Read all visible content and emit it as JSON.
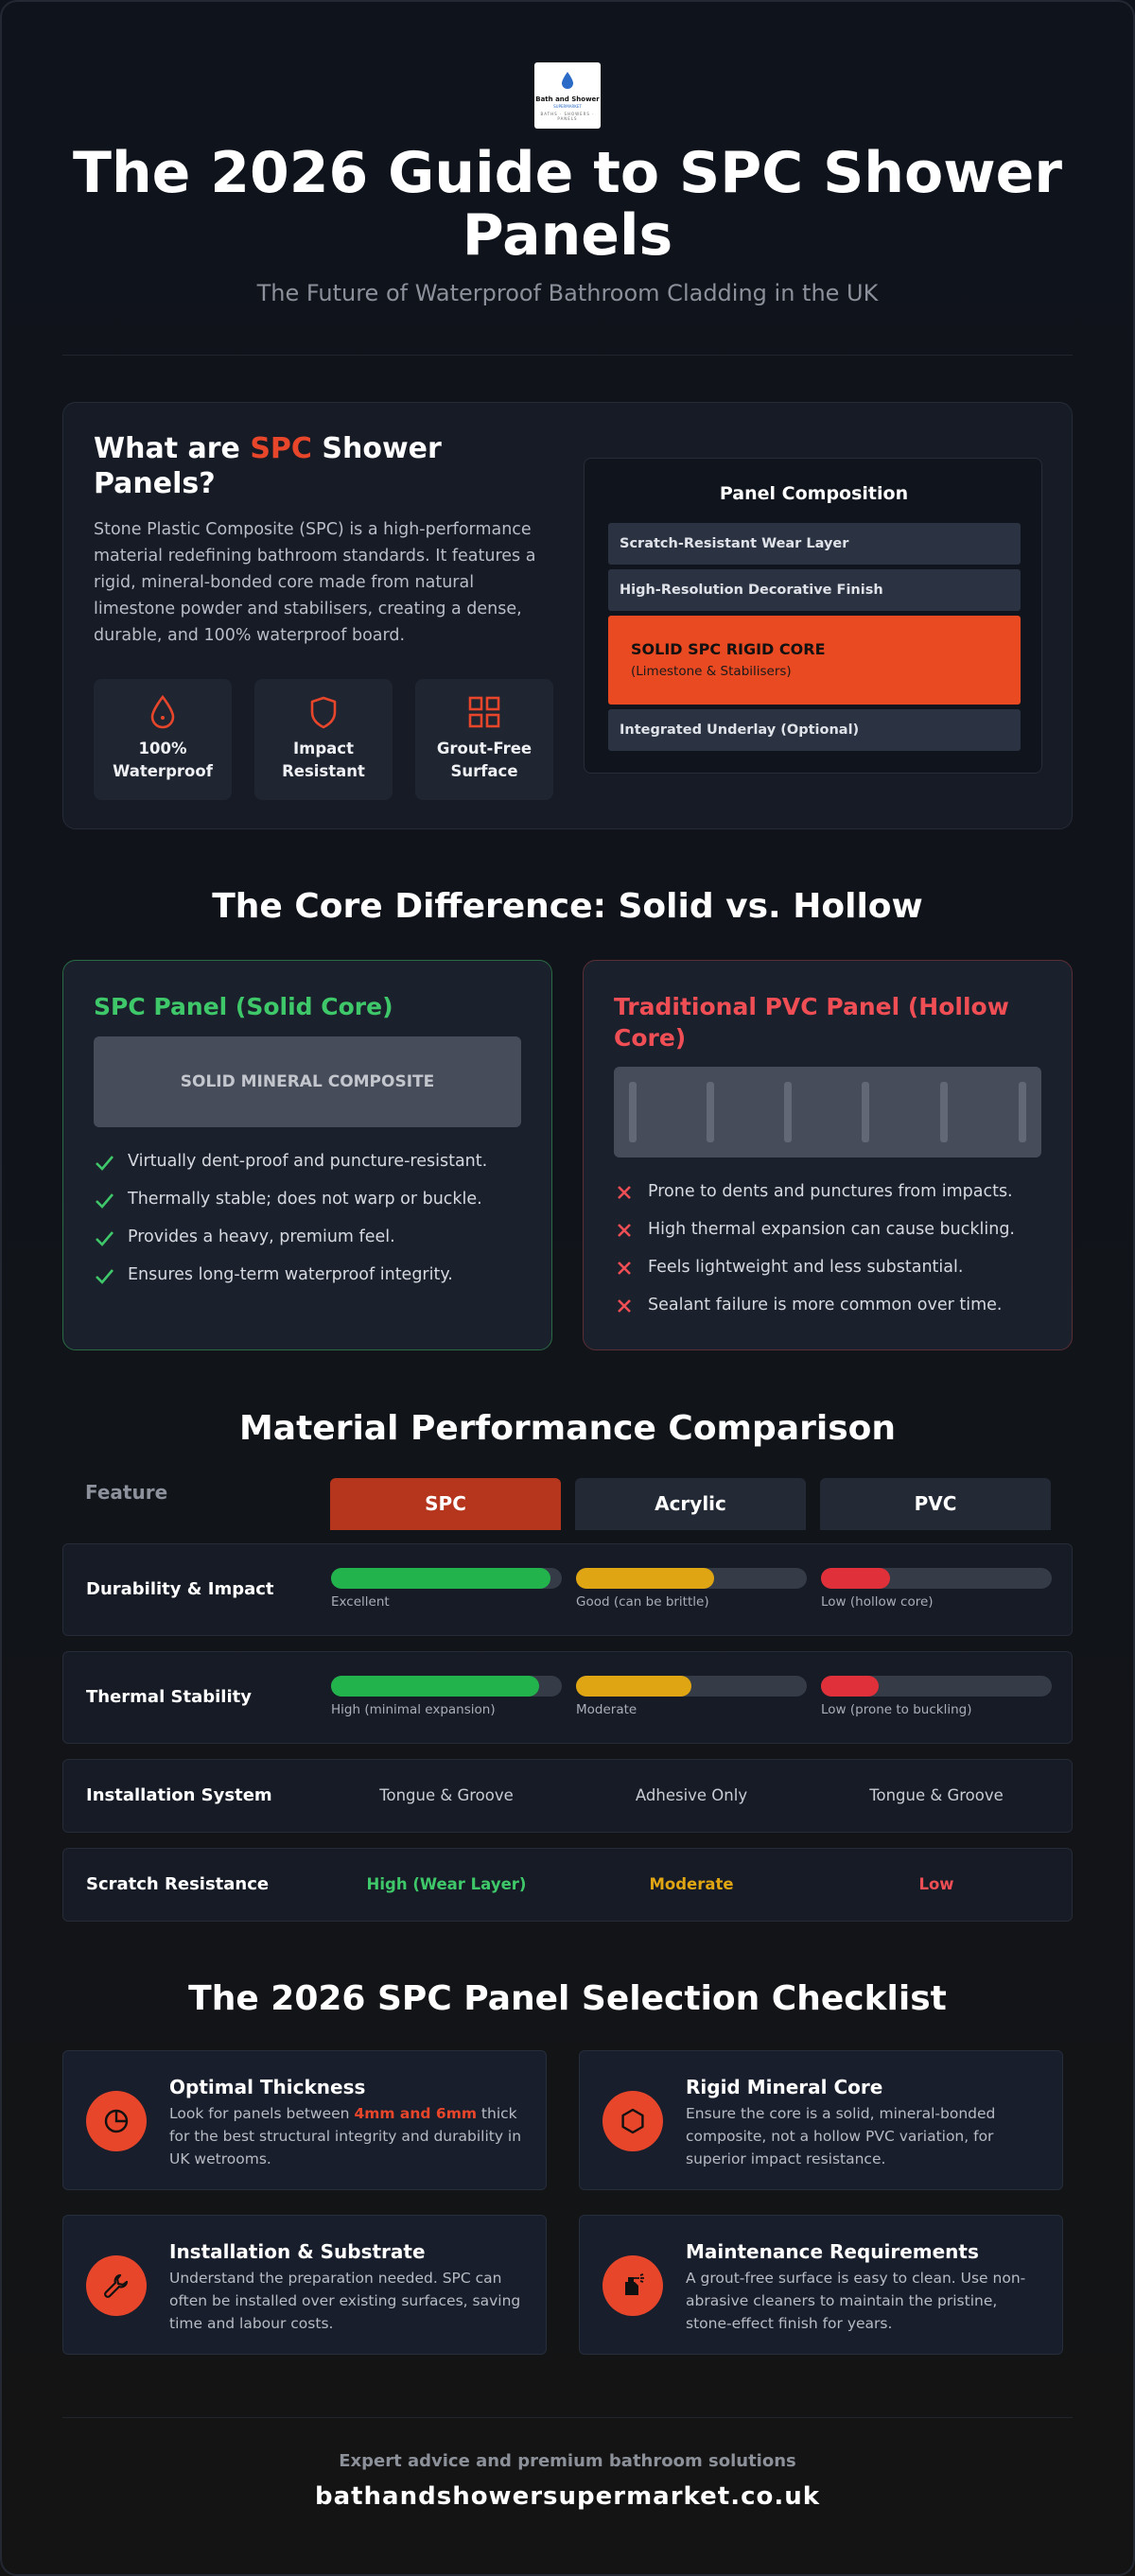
{
  "logo": {
    "brand": "Bath and Shower",
    "tagline": "SUPERMARKET",
    "nav": "BATHS · SHOWERS · PANELS"
  },
  "header": {
    "title": "The 2026 Guide to SPC Shower Panels",
    "subtitle": "The Future of Waterproof Bathroom Cladding in the UK"
  },
  "what": {
    "title_pre": "What are ",
    "title_accent": "SPC",
    "title_post": " Shower Panels?",
    "description": "Stone Plastic Composite (SPC) is a high-performance material redefining bathroom standards. It features a rigid, mineral-bonded core made from natural limestone powder and stabilisers, creating a dense, durable, and 100% waterproof board.",
    "features": [
      {
        "label": "100% Waterproof",
        "icon": "water-drop-icon"
      },
      {
        "label": "Impact Resistant",
        "icon": "shield-icon"
      },
      {
        "label": "Grout-Free Surface",
        "icon": "grid-icon"
      }
    ]
  },
  "composition": {
    "title": "Panel Composition",
    "layers": [
      {
        "label": "Scratch-Resistant Wear Layer"
      },
      {
        "label": "High-Resolution Decorative Finish"
      },
      {
        "label": "SOLID SPC RIGID CORE",
        "sub": "(Limestone & Stabilisers)"
      },
      {
        "label": "Integrated Underlay (Optional)"
      }
    ]
  },
  "core": {
    "heading": "The Core Difference: Solid vs. Hollow",
    "spc": {
      "title": "SPC Panel (Solid Core)",
      "block_label": "SOLID MINERAL COMPOSITE",
      "bullets": [
        "Virtually dent-proof and puncture-resistant.",
        "Thermally stable; does not warp or buckle.",
        "Provides a heavy, premium feel.",
        "Ensures long-term waterproof integrity."
      ]
    },
    "pvc": {
      "title": "Traditional PVC Panel (Hollow Core)",
      "bullets": [
        "Prone to dents and punctures from impacts.",
        "High thermal expansion can cause buckling.",
        "Feels lightweight and less substantial.",
        "Sealant failure is more common over time."
      ]
    }
  },
  "comparison": {
    "heading": "Material Performance Comparison",
    "feature_header": "Feature",
    "columns": [
      "SPC",
      "Acrylic",
      "PVC"
    ],
    "colors": {
      "spc": "#b5361c",
      "other": "#232a36",
      "green": "#22b34c",
      "amber": "#e0a513",
      "red": "#e0303a"
    },
    "rows": [
      {
        "label": "Durability & Impact",
        "type": "bar",
        "values": [
          {
            "level": 0.95,
            "text": "Excellent"
          },
          {
            "level": 0.6,
            "text": "Good (can be brittle)"
          },
          {
            "level": 0.3,
            "text": "Low (hollow core)"
          }
        ]
      },
      {
        "label": "Thermal Stability",
        "type": "bar",
        "values": [
          {
            "level": 0.9,
            "text": "High (minimal expansion)"
          },
          {
            "level": 0.5,
            "text": "Moderate"
          },
          {
            "level": 0.25,
            "text": "Low (prone to buckling)"
          }
        ]
      },
      {
        "label": "Installation System",
        "type": "text",
        "values": [
          "Tongue & Groove",
          "Adhesive Only",
          "Tongue & Groove"
        ]
      },
      {
        "label": "Scratch Resistance",
        "type": "rating",
        "values": [
          "High (Wear Layer)",
          "Moderate",
          "Low"
        ]
      }
    ]
  },
  "checklist": {
    "heading": "The 2026 SPC Panel Selection Checklist",
    "items": [
      {
        "title": "Optimal Thickness",
        "icon": "pie-chart-icon",
        "text_pre": "Look for panels between ",
        "highlight": "4mm and 6mm",
        "text_post": " thick for the best structural integrity and durability in UK wetrooms."
      },
      {
        "title": "Rigid Mineral Core",
        "icon": "hexagon-icon",
        "text": "Ensure the core is a solid, mineral-bonded composite, not a hollow PVC variation, for superior impact resistance."
      },
      {
        "title": "Installation & Substrate",
        "icon": "wrench-icon",
        "text": "Understand the preparation needed. SPC can often be installed over existing surfaces, saving time and labour costs."
      },
      {
        "title": "Maintenance Requirements",
        "icon": "spray-bottle-icon",
        "text": "A grout-free surface is easy to clean. Use non-abrasive cleaners to maintain the pristine, stone-effect finish for years."
      }
    ]
  },
  "footer": {
    "tagline": "Expert advice and premium bathroom solutions",
    "site": "bathandshowersupermarket.co.uk"
  }
}
